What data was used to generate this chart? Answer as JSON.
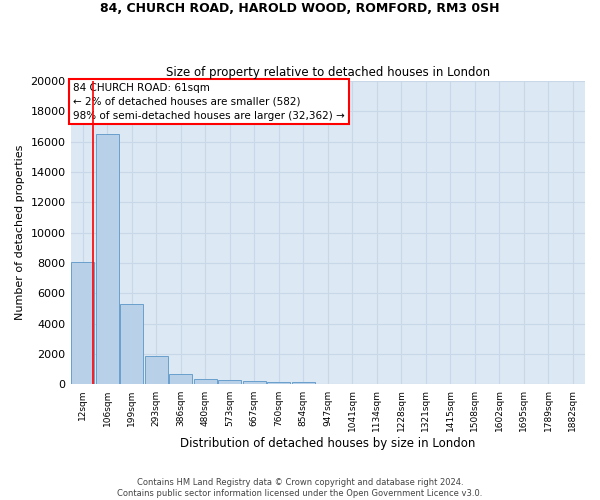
{
  "title1": "84, CHURCH ROAD, HAROLD WOOD, ROMFORD, RM3 0SH",
  "title2": "Size of property relative to detached houses in London",
  "xlabel": "Distribution of detached houses by size in London",
  "ylabel": "Number of detached properties",
  "footer1": "Contains HM Land Registry data © Crown copyright and database right 2024.",
  "footer2": "Contains public sector information licensed under the Open Government Licence v3.0.",
  "annotation_title": "84 CHURCH ROAD: 61sqm",
  "annotation_line1": "← 2% of detached houses are smaller (582)",
  "annotation_line2": "98% of semi-detached houses are larger (32,362) →",
  "bar_color": "#b8d0e8",
  "bar_edge_color": "#6aa0cc",
  "vline_color": "red",
  "vline_x": 0.42,
  "annotation_box_color": "white",
  "annotation_box_edge_color": "red",
  "categories": [
    "12sqm",
    "106sqm",
    "199sqm",
    "293sqm",
    "386sqm",
    "480sqm",
    "573sqm",
    "667sqm",
    "760sqm",
    "854sqm",
    "947sqm",
    "1041sqm",
    "1134sqm",
    "1228sqm",
    "1321sqm",
    "1415sqm",
    "1508sqm",
    "1602sqm",
    "1695sqm",
    "1789sqm",
    "1882sqm"
  ],
  "values": [
    8100,
    16500,
    5300,
    1850,
    700,
    350,
    270,
    220,
    190,
    130,
    0,
    0,
    0,
    0,
    0,
    0,
    0,
    0,
    0,
    0,
    0
  ],
  "ylim": [
    0,
    20000
  ],
  "yticks": [
    0,
    2000,
    4000,
    6000,
    8000,
    10000,
    12000,
    14000,
    16000,
    18000,
    20000
  ],
  "grid_color": "#c8d8e8",
  "bg_color": "#dce8f4"
}
